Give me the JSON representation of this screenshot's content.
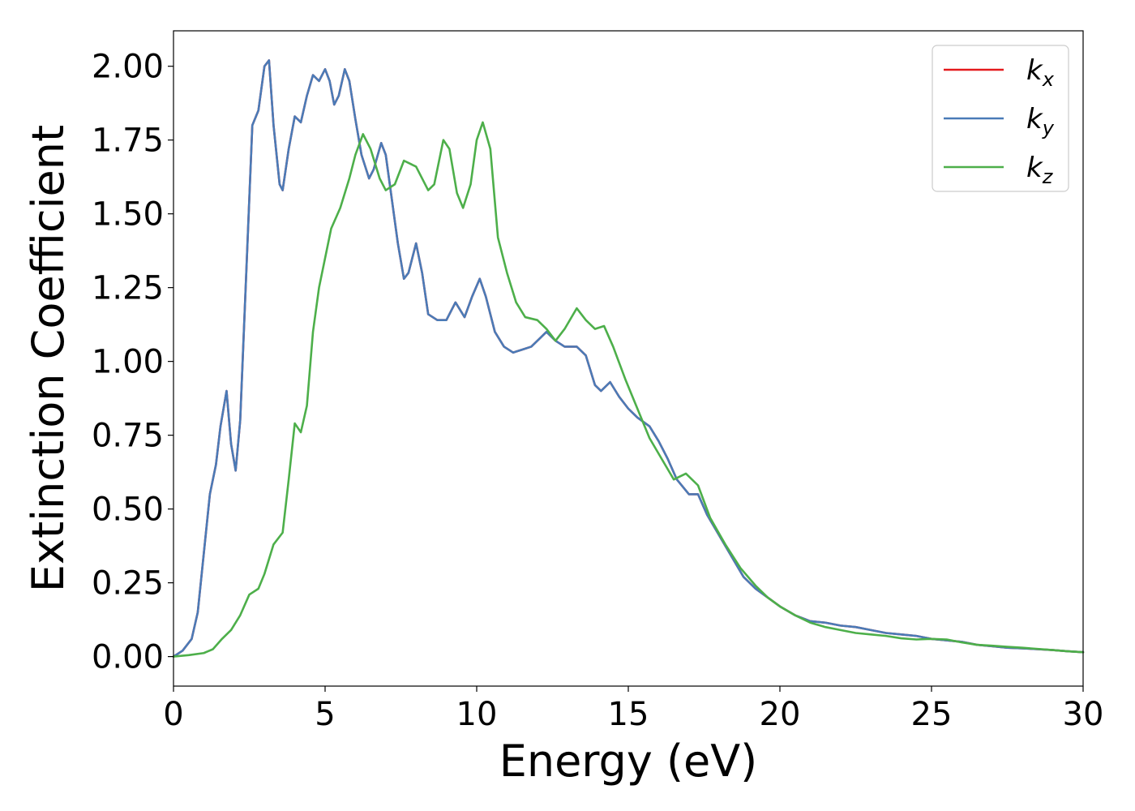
{
  "chart_data": {
    "type": "line",
    "title": "",
    "xlabel": "Energy (eV)",
    "ylabel": "Extinction Coefficient",
    "xlim": [
      0,
      30
    ],
    "ylim": [
      -0.1,
      2.12
    ],
    "xticks": [
      0,
      5,
      10,
      15,
      20,
      25,
      30
    ],
    "xtick_labels": [
      "0",
      "5",
      "10",
      "15",
      "20",
      "25",
      "30"
    ],
    "yticks": [
      0,
      0.25,
      0.5,
      0.75,
      1.0,
      1.25,
      1.5,
      1.75,
      2.0
    ],
    "ytick_labels": [
      "0.00",
      "0.25",
      "0.50",
      "0.75",
      "1.00",
      "1.25",
      "1.50",
      "1.75",
      "2.00"
    ],
    "grid": false,
    "legend": {
      "placement": "top-right",
      "entries": [
        {
          "base": "k",
          "sub": "x"
        },
        {
          "base": "k",
          "sub": "y"
        },
        {
          "base": "k",
          "sub": "z"
        }
      ]
    },
    "series": [
      {
        "name": "kx",
        "color": "#e41a1c",
        "points": [
          [
            0,
            0
          ],
          [
            0.3,
            0.02
          ],
          [
            0.6,
            0.06
          ],
          [
            0.8,
            0.15
          ],
          [
            1.0,
            0.35
          ],
          [
            1.2,
            0.55
          ],
          [
            1.4,
            0.65
          ],
          [
            1.55,
            0.78
          ],
          [
            1.75,
            0.9
          ],
          [
            1.9,
            0.72
          ],
          [
            2.05,
            0.63
          ],
          [
            2.2,
            0.8
          ],
          [
            2.4,
            1.3
          ],
          [
            2.6,
            1.8
          ],
          [
            2.8,
            1.85
          ],
          [
            3.0,
            2.0
          ],
          [
            3.15,
            2.02
          ],
          [
            3.3,
            1.8
          ],
          [
            3.5,
            1.6
          ],
          [
            3.6,
            1.58
          ],
          [
            3.8,
            1.72
          ],
          [
            4.0,
            1.83
          ],
          [
            4.2,
            1.81
          ],
          [
            4.4,
            1.9
          ],
          [
            4.6,
            1.97
          ],
          [
            4.8,
            1.95
          ],
          [
            5.0,
            1.99
          ],
          [
            5.15,
            1.95
          ],
          [
            5.3,
            1.87
          ],
          [
            5.45,
            1.9
          ],
          [
            5.65,
            1.99
          ],
          [
            5.8,
            1.95
          ],
          [
            6.0,
            1.82
          ],
          [
            6.2,
            1.7
          ],
          [
            6.45,
            1.62
          ],
          [
            6.6,
            1.65
          ],
          [
            6.85,
            1.74
          ],
          [
            7.0,
            1.7
          ],
          [
            7.2,
            1.55
          ],
          [
            7.4,
            1.4
          ],
          [
            7.6,
            1.28
          ],
          [
            7.75,
            1.3
          ],
          [
            8.0,
            1.4
          ],
          [
            8.2,
            1.3
          ],
          [
            8.4,
            1.16
          ],
          [
            8.7,
            1.14
          ],
          [
            9.0,
            1.14
          ],
          [
            9.3,
            1.2
          ],
          [
            9.6,
            1.15
          ],
          [
            9.85,
            1.22
          ],
          [
            10.1,
            1.28
          ],
          [
            10.3,
            1.22
          ],
          [
            10.6,
            1.1
          ],
          [
            10.9,
            1.05
          ],
          [
            11.2,
            1.03
          ],
          [
            11.5,
            1.04
          ],
          [
            11.8,
            1.05
          ],
          [
            12.1,
            1.08
          ],
          [
            12.3,
            1.1
          ],
          [
            12.6,
            1.07
          ],
          [
            12.9,
            1.05
          ],
          [
            13.3,
            1.05
          ],
          [
            13.6,
            1.02
          ],
          [
            13.9,
            0.92
          ],
          [
            14.1,
            0.9
          ],
          [
            14.4,
            0.93
          ],
          [
            14.7,
            0.88
          ],
          [
            15.0,
            0.84
          ],
          [
            15.3,
            0.81
          ],
          [
            15.7,
            0.78
          ],
          [
            16.0,
            0.73
          ],
          [
            16.3,
            0.67
          ],
          [
            16.6,
            0.6
          ],
          [
            17.0,
            0.55
          ],
          [
            17.3,
            0.55
          ],
          [
            17.6,
            0.48
          ],
          [
            18.0,
            0.41
          ],
          [
            18.4,
            0.34
          ],
          [
            18.8,
            0.27
          ],
          [
            19.2,
            0.23
          ],
          [
            19.6,
            0.2
          ],
          [
            20.0,
            0.17
          ],
          [
            20.5,
            0.14
          ],
          [
            21.0,
            0.12
          ],
          [
            21.5,
            0.115
          ],
          [
            22.0,
            0.105
          ],
          [
            22.5,
            0.1
          ],
          [
            23.0,
            0.09
          ],
          [
            23.5,
            0.08
          ],
          [
            24.0,
            0.075
          ],
          [
            24.5,
            0.07
          ],
          [
            25.0,
            0.06
          ],
          [
            25.5,
            0.055
          ],
          [
            26.0,
            0.05
          ],
          [
            26.5,
            0.04
          ],
          [
            27.0,
            0.035
          ],
          [
            27.5,
            0.03
          ],
          [
            28.0,
            0.028
          ],
          [
            28.5,
            0.025
          ],
          [
            29.0,
            0.022
          ],
          [
            29.5,
            0.018
          ],
          [
            30.0,
            0.015
          ]
        ]
      },
      {
        "name": "ky",
        "color": "#4a7bb7",
        "points": [
          [
            0,
            0
          ],
          [
            0.3,
            0.02
          ],
          [
            0.6,
            0.06
          ],
          [
            0.8,
            0.15
          ],
          [
            1.0,
            0.35
          ],
          [
            1.2,
            0.55
          ],
          [
            1.4,
            0.65
          ],
          [
            1.55,
            0.78
          ],
          [
            1.75,
            0.9
          ],
          [
            1.9,
            0.72
          ],
          [
            2.05,
            0.63
          ],
          [
            2.2,
            0.8
          ],
          [
            2.4,
            1.3
          ],
          [
            2.6,
            1.8
          ],
          [
            2.8,
            1.85
          ],
          [
            3.0,
            2.0
          ],
          [
            3.15,
            2.02
          ],
          [
            3.3,
            1.8
          ],
          [
            3.5,
            1.6
          ],
          [
            3.6,
            1.58
          ],
          [
            3.8,
            1.72
          ],
          [
            4.0,
            1.83
          ],
          [
            4.2,
            1.81
          ],
          [
            4.4,
            1.9
          ],
          [
            4.6,
            1.97
          ],
          [
            4.8,
            1.95
          ],
          [
            5.0,
            1.99
          ],
          [
            5.15,
            1.95
          ],
          [
            5.3,
            1.87
          ],
          [
            5.45,
            1.9
          ],
          [
            5.65,
            1.99
          ],
          [
            5.8,
            1.95
          ],
          [
            6.0,
            1.82
          ],
          [
            6.2,
            1.7
          ],
          [
            6.45,
            1.62
          ],
          [
            6.6,
            1.65
          ],
          [
            6.85,
            1.74
          ],
          [
            7.0,
            1.7
          ],
          [
            7.2,
            1.55
          ],
          [
            7.4,
            1.4
          ],
          [
            7.6,
            1.28
          ],
          [
            7.75,
            1.3
          ],
          [
            8.0,
            1.4
          ],
          [
            8.2,
            1.3
          ],
          [
            8.4,
            1.16
          ],
          [
            8.7,
            1.14
          ],
          [
            9.0,
            1.14
          ],
          [
            9.3,
            1.2
          ],
          [
            9.6,
            1.15
          ],
          [
            9.85,
            1.22
          ],
          [
            10.1,
            1.28
          ],
          [
            10.3,
            1.22
          ],
          [
            10.6,
            1.1
          ],
          [
            10.9,
            1.05
          ],
          [
            11.2,
            1.03
          ],
          [
            11.5,
            1.04
          ],
          [
            11.8,
            1.05
          ],
          [
            12.1,
            1.08
          ],
          [
            12.3,
            1.1
          ],
          [
            12.6,
            1.07
          ],
          [
            12.9,
            1.05
          ],
          [
            13.3,
            1.05
          ],
          [
            13.6,
            1.02
          ],
          [
            13.9,
            0.92
          ],
          [
            14.1,
            0.9
          ],
          [
            14.4,
            0.93
          ],
          [
            14.7,
            0.88
          ],
          [
            15.0,
            0.84
          ],
          [
            15.3,
            0.81
          ],
          [
            15.7,
            0.78
          ],
          [
            16.0,
            0.73
          ],
          [
            16.3,
            0.67
          ],
          [
            16.6,
            0.6
          ],
          [
            17.0,
            0.55
          ],
          [
            17.3,
            0.55
          ],
          [
            17.6,
            0.48
          ],
          [
            18.0,
            0.41
          ],
          [
            18.4,
            0.34
          ],
          [
            18.8,
            0.27
          ],
          [
            19.2,
            0.23
          ],
          [
            19.6,
            0.2
          ],
          [
            20.0,
            0.17
          ],
          [
            20.5,
            0.14
          ],
          [
            21.0,
            0.12
          ],
          [
            21.5,
            0.115
          ],
          [
            22.0,
            0.105
          ],
          [
            22.5,
            0.1
          ],
          [
            23.0,
            0.09
          ],
          [
            23.5,
            0.08
          ],
          [
            24.0,
            0.075
          ],
          [
            24.5,
            0.07
          ],
          [
            25.0,
            0.06
          ],
          [
            25.5,
            0.055
          ],
          [
            26.0,
            0.05
          ],
          [
            26.5,
            0.04
          ],
          [
            27.0,
            0.035
          ],
          [
            27.5,
            0.03
          ],
          [
            28.0,
            0.028
          ],
          [
            28.5,
            0.025
          ],
          [
            29.0,
            0.022
          ],
          [
            29.5,
            0.018
          ],
          [
            30.0,
            0.015
          ]
        ]
      },
      {
        "name": "kz",
        "color": "#4daf4a",
        "points": [
          [
            0,
            0
          ],
          [
            0.5,
            0.005
          ],
          [
            1.0,
            0.012
          ],
          [
            1.3,
            0.025
          ],
          [
            1.6,
            0.06
          ],
          [
            1.9,
            0.09
          ],
          [
            2.2,
            0.14
          ],
          [
            2.5,
            0.21
          ],
          [
            2.8,
            0.23
          ],
          [
            3.0,
            0.28
          ],
          [
            3.3,
            0.38
          ],
          [
            3.6,
            0.42
          ],
          [
            3.8,
            0.6
          ],
          [
            4.0,
            0.79
          ],
          [
            4.2,
            0.76
          ],
          [
            4.4,
            0.85
          ],
          [
            4.6,
            1.1
          ],
          [
            4.8,
            1.25
          ],
          [
            5.0,
            1.35
          ],
          [
            5.2,
            1.45
          ],
          [
            5.5,
            1.52
          ],
          [
            5.8,
            1.62
          ],
          [
            6.0,
            1.7
          ],
          [
            6.25,
            1.77
          ],
          [
            6.5,
            1.72
          ],
          [
            6.8,
            1.62
          ],
          [
            7.0,
            1.58
          ],
          [
            7.3,
            1.6
          ],
          [
            7.6,
            1.68
          ],
          [
            8.0,
            1.66
          ],
          [
            8.4,
            1.58
          ],
          [
            8.6,
            1.6
          ],
          [
            8.9,
            1.75
          ],
          [
            9.1,
            1.72
          ],
          [
            9.35,
            1.57
          ],
          [
            9.55,
            1.52
          ],
          [
            9.8,
            1.6
          ],
          [
            10.0,
            1.75
          ],
          [
            10.2,
            1.81
          ],
          [
            10.45,
            1.72
          ],
          [
            10.7,
            1.42
          ],
          [
            11.0,
            1.3
          ],
          [
            11.3,
            1.2
          ],
          [
            11.6,
            1.15
          ],
          [
            12.0,
            1.14
          ],
          [
            12.3,
            1.11
          ],
          [
            12.6,
            1.07
          ],
          [
            12.9,
            1.11
          ],
          [
            13.3,
            1.18
          ],
          [
            13.6,
            1.14
          ],
          [
            13.9,
            1.11
          ],
          [
            14.2,
            1.12
          ],
          [
            14.5,
            1.05
          ],
          [
            14.9,
            0.94
          ],
          [
            15.3,
            0.84
          ],
          [
            15.7,
            0.74
          ],
          [
            16.1,
            0.67
          ],
          [
            16.5,
            0.6
          ],
          [
            16.9,
            0.62
          ],
          [
            17.3,
            0.58
          ],
          [
            17.7,
            0.47
          ],
          [
            18.2,
            0.38
          ],
          [
            18.7,
            0.3
          ],
          [
            19.2,
            0.24
          ],
          [
            19.6,
            0.2
          ],
          [
            20.0,
            0.17
          ],
          [
            20.5,
            0.14
          ],
          [
            21.0,
            0.115
          ],
          [
            21.5,
            0.1
          ],
          [
            22.0,
            0.09
          ],
          [
            22.5,
            0.08
          ],
          [
            23.0,
            0.075
          ],
          [
            23.5,
            0.07
          ],
          [
            24.0,
            0.062
          ],
          [
            24.5,
            0.058
          ],
          [
            25.0,
            0.06
          ],
          [
            25.5,
            0.058
          ],
          [
            26.0,
            0.048
          ],
          [
            26.5,
            0.04
          ],
          [
            27.0,
            0.037
          ],
          [
            27.5,
            0.033
          ],
          [
            28.0,
            0.03
          ],
          [
            28.5,
            0.026
          ],
          [
            29.0,
            0.022
          ],
          [
            29.5,
            0.018
          ],
          [
            30.0,
            0.015
          ]
        ]
      }
    ]
  }
}
